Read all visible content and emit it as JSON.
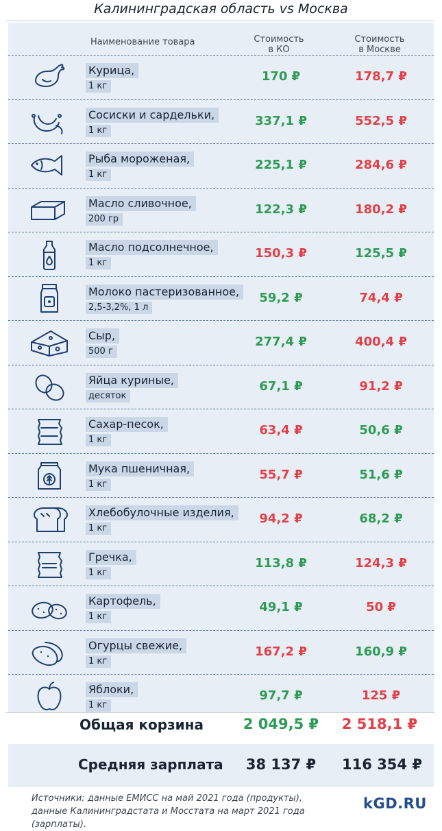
{
  "header": {
    "title": "Калининградская область vs Москва",
    "col_name": "Наименование товара",
    "col_ko_1": "Стоимость",
    "col_ko_2": "в КО",
    "col_msk_1": "Стоимость",
    "col_msk_2": "в Москве"
  },
  "colors": {
    "cheaper": "#2d9b55",
    "pricier": "#e14048",
    "panel": "#e8eef5",
    "label_bg": "#cad7e6",
    "icon_stroke": "#1e3f6e"
  },
  "items": [
    {
      "name": "Курица,",
      "unit": "1 кг",
      "icon": "chicken-icon",
      "ko": "170 ₽",
      "msk": "178,7 ₽",
      "ko_color": "green",
      "msk_color": "red"
    },
    {
      "name": "Сосиски и сардельки,",
      "unit": "1 кг",
      "icon": "sausage-icon",
      "ko": "337,1 ₽",
      "msk": "552,5 ₽",
      "ko_color": "green",
      "msk_color": "red"
    },
    {
      "name": "Рыба мороженая,",
      "unit": "1 кг",
      "icon": "fish-icon",
      "ko": "225,1 ₽",
      "msk": "284,6 ₽",
      "ko_color": "green",
      "msk_color": "red"
    },
    {
      "name": "Масло сливочное,",
      "unit": "200 гр",
      "icon": "butter-icon",
      "ko": "122,3 ₽",
      "msk": "180,2 ₽",
      "ko_color": "green",
      "msk_color": "red"
    },
    {
      "name": "Масло подсолнечное,",
      "unit": "1 кг",
      "icon": "oil-bottle-icon",
      "ko": "150,3 ₽",
      "msk": "125,5 ₽",
      "ko_color": "red",
      "msk_color": "green"
    },
    {
      "name": "Молоко пастеризованное,",
      "unit": "2,5-3,2%, 1 л",
      "icon": "milk-carton-icon",
      "ko": "59,2 ₽",
      "msk": "74,4 ₽",
      "ko_color": "green",
      "msk_color": "red"
    },
    {
      "name": "Сыр,",
      "unit": "500 г",
      "icon": "cheese-icon",
      "ko": "277,4 ₽",
      "msk": "400,4 ₽",
      "ko_color": "green",
      "msk_color": "red"
    },
    {
      "name": "Яйца куриные,",
      "unit": "десяток",
      "icon": "eggs-icon",
      "ko": "67,1 ₽",
      "msk": "91,2 ₽",
      "ko_color": "green",
      "msk_color": "red"
    },
    {
      "name": "Сахар-песок,",
      "unit": "1 кг",
      "icon": "sugar-bag-icon",
      "ko": "63,4 ₽",
      "msk": "50,6 ₽",
      "ko_color": "red",
      "msk_color": "green"
    },
    {
      "name": "Мука пшеничная,",
      "unit": "1 кг",
      "icon": "flour-bag-icon",
      "ko": "55,7 ₽",
      "msk": "51,6 ₽",
      "ko_color": "red",
      "msk_color": "green"
    },
    {
      "name": "Хлебобулочные изделия,",
      "unit": "1 кг",
      "icon": "bread-icon",
      "ko": "94,2 ₽",
      "msk": "68,2 ₽",
      "ko_color": "red",
      "msk_color": "green"
    },
    {
      "name": "Гречка,",
      "unit": "1 кг",
      "icon": "buckwheat-bag-icon",
      "ko": "113,8 ₽",
      "msk": "124,3 ₽",
      "ko_color": "green",
      "msk_color": "red"
    },
    {
      "name": "Картофель,",
      "unit": "1 кг",
      "icon": "potato-icon",
      "ko": "49,1 ₽",
      "msk": "50 ₽",
      "ko_color": "green",
      "msk_color": "red"
    },
    {
      "name": "Огурцы свежие,",
      "unit": "1 кг",
      "icon": "cucumber-icon",
      "ko": "167,2 ₽",
      "msk": "160,9 ₽",
      "ko_color": "red",
      "msk_color": "green"
    },
    {
      "name": "Яблоки,",
      "unit": "1 кг",
      "icon": "apple-icon",
      "ko": "97,7 ₽",
      "msk": "125 ₽",
      "ko_color": "green",
      "msk_color": "red"
    }
  ],
  "total": {
    "label": "Общая корзина",
    "ko": "2 049,5 ₽",
    "msk": "2 518,1 ₽",
    "ko_color": "green",
    "msk_color": "red"
  },
  "salary": {
    "label": "Средняя зарплата",
    "ko": "38 137 ₽",
    "msk": "116 354 ₽"
  },
  "footer": {
    "source_1": "Источники: данные ЕМИСС на май 2021 года (продукты),",
    "source_2": "данные Калининградстата и Мосстата на март 2021 года (зарплаты).",
    "brand": "kGD.RU"
  }
}
